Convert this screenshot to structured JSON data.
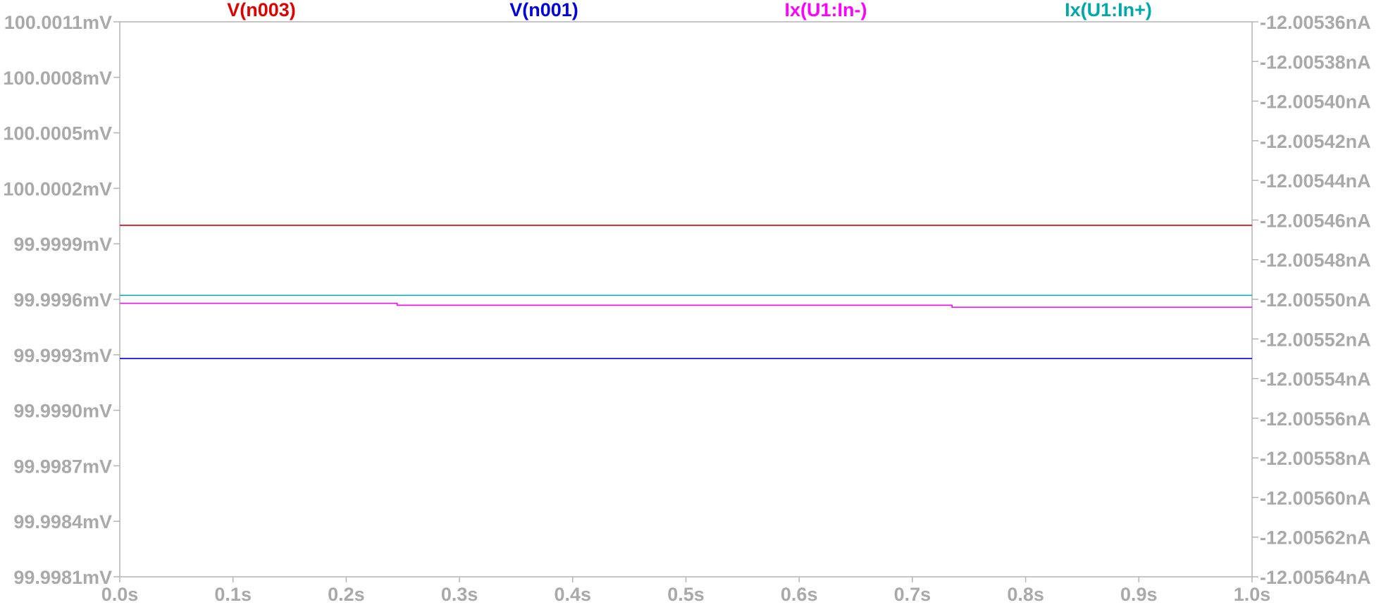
{
  "chart_data": {
    "type": "line",
    "title": "",
    "xlabel": "",
    "ylabel": "",
    "y2label": "",
    "grid": false,
    "legend_placement": "top",
    "x_ticks": [
      "0.0s",
      "0.1s",
      "0.2s",
      "0.3s",
      "0.4s",
      "0.5s",
      "0.6s",
      "0.7s",
      "0.8s",
      "0.9s",
      "1.0s"
    ],
    "x_tick_values": [
      0,
      0.1,
      0.2,
      0.3,
      0.4,
      0.5,
      0.6,
      0.7,
      0.8,
      0.9,
      1.0
    ],
    "xlim": [
      0,
      1.0
    ],
    "y_left_ticks": [
      "100.0011mV",
      "100.0008mV",
      "100.0005mV",
      "100.0002mV",
      "99.9999mV",
      "99.9996mV",
      "99.9993mV",
      "99.9990mV",
      "99.9987mV",
      "99.9984mV",
      "99.9981mV"
    ],
    "y_left_tick_values": [
      100.0011,
      100.0008,
      100.0005,
      100.0002,
      99.9999,
      99.9996,
      99.9993,
      99.999,
      99.9987,
      99.9984,
      99.9981
    ],
    "y_left_lim": [
      99.9981,
      100.0011
    ],
    "y_left_unit": "mV",
    "y_right_ticks": [
      "-12.00536nA",
      "-12.00538nA",
      "-12.00540nA",
      "-12.00542nA",
      "-12.00544nA",
      "-12.00546nA",
      "-12.00548nA",
      "-12.00550nA",
      "-12.00552nA",
      "-12.00554nA",
      "-12.00556nA",
      "-12.00558nA",
      "-12.00560nA",
      "-12.00562nA",
      "-12.00564nA"
    ],
    "y_right_tick_values": [
      -12.00536,
      -12.00538,
      -12.0054,
      -12.00542,
      -12.00544,
      -12.00546,
      -12.00548,
      -12.0055,
      -12.00552,
      -12.00554,
      -12.00556,
      -12.00558,
      -12.0056,
      -12.00562,
      -12.00564
    ],
    "y_right_lim": [
      -12.00564,
      -12.00536
    ],
    "y_right_unit": "nA",
    "series": [
      {
        "name": "V(n003)",
        "color": "#e00000",
        "axis": "left",
        "x": [
          0,
          1.0
        ],
        "y": [
          100.0,
          100.0
        ]
      },
      {
        "name": "V(n001)",
        "color": "#0000e0",
        "axis": "left",
        "x": [
          0,
          1.0
        ],
        "y": [
          99.99928,
          99.99928
        ]
      },
      {
        "name": "Ix(U1:In-)",
        "color": "#ff00ff",
        "axis": "right",
        "x": [
          0,
          0.245,
          0.245,
          0.735,
          0.735,
          1.0
        ],
        "y": [
          -12.005502,
          -12.005502,
          -12.005503,
          -12.005503,
          -12.005504,
          -12.005504
        ]
      },
      {
        "name": "Ix(U1:In+)",
        "color": "#00a8a8",
        "axis": "right",
        "x": [
          0,
          1.0
        ],
        "y": [
          -12.005498,
          -12.005498
        ]
      }
    ]
  }
}
